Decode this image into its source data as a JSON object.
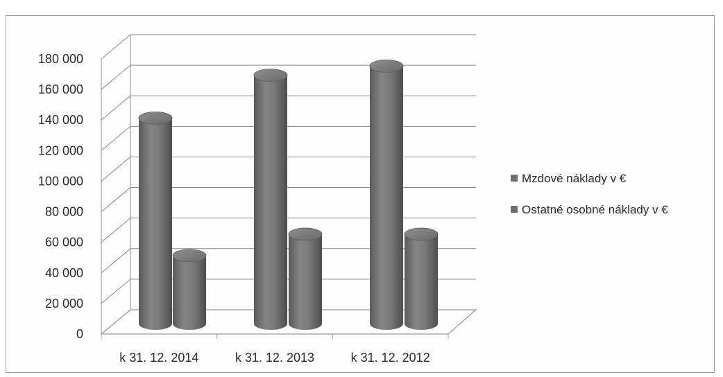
{
  "chart_data": {
    "type": "bar",
    "style": "3d-cylinder",
    "categories": [
      "k 31. 12. 2014",
      "k 31. 12. 2013",
      "k 31. 12. 2012"
    ],
    "series": [
      {
        "name": "Mzdové náklady v €",
        "values": [
          144000,
          172000,
          178000
        ]
      },
      {
        "name": "Ostatné osobné náklady v €",
        "values": [
          54000,
          68000,
          68000
        ]
      }
    ],
    "yticks": [
      "0",
      "20 000",
      "40 000",
      "60 000",
      "80 000",
      "100 000",
      "120 000",
      "140 000",
      "160 000",
      "180 000"
    ],
    "ylim": [
      0,
      180000
    ],
    "grid": true,
    "legend": "right",
    "colors": {
      "series": [
        "#6f6f6f",
        "#6f6f6f"
      ],
      "grid": "#8a8a8a",
      "floor": "#9a9a9a"
    }
  }
}
